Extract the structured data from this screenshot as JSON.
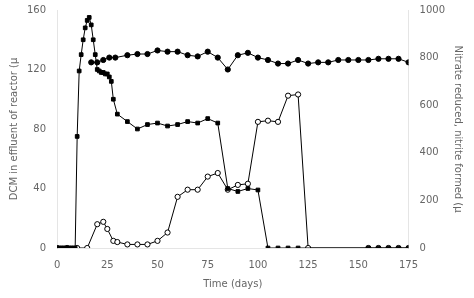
{
  "chart_data": {
    "type": "line",
    "xlabel": "Time (days)",
    "ylabel": "DCM in effluent of reactor (μ",
    "y2label": "Nitrate reduced, nitrite formed (μ",
    "xlim": [
      0,
      175
    ],
    "xticks": [
      0,
      25,
      50,
      75,
      100,
      125,
      150,
      175
    ],
    "ylim": [
      0,
      160
    ],
    "yticks": [
      0,
      40,
      80,
      120,
      160
    ],
    "y2lim": [
      0,
      1000
    ],
    "y2ticks": [
      0,
      200,
      400,
      600,
      800,
      1000
    ],
    "grid": false,
    "series": [
      {
        "axis": "y",
        "color": "#000000",
        "marker": "square",
        "x": [
          0,
          1,
          2,
          3,
          4,
          5,
          6,
          7,
          8,
          9,
          10,
          11,
          12,
          13,
          14,
          15,
          16,
          17,
          18,
          19,
          20,
          21,
          22,
          23,
          24,
          25,
          26,
          27,
          28,
          30,
          35,
          40,
          45,
          50,
          55,
          60,
          65,
          70,
          75,
          80,
          85,
          90,
          95,
          100,
          105,
          110,
          115,
          120,
          155,
          160,
          165,
          170,
          175
        ],
        "values": [
          0,
          0,
          0,
          0,
          0,
          0,
          0,
          0,
          0,
          0,
          75,
          119,
          130,
          140,
          148,
          153,
          155,
          150,
          140,
          130,
          120,
          119,
          118,
          118,
          117,
          117,
          115,
          112,
          100,
          90,
          85,
          80,
          83,
          84,
          82,
          83,
          85,
          84,
          87,
          84,
          40,
          38,
          40,
          39,
          0,
          0,
          0,
          0,
          0,
          0,
          0,
          0,
          0
        ]
      },
      {
        "axis": "y2",
        "color": "#000000",
        "marker": "circle",
        "x": [
          17,
          20,
          23,
          26,
          29,
          35,
          40,
          45,
          50,
          55,
          60,
          65,
          70,
          75,
          80,
          85,
          90,
          95,
          100,
          105,
          110,
          115,
          120,
          125,
          130,
          135,
          140,
          145,
          150,
          155,
          160,
          165,
          170,
          175
        ],
        "values": [
          780,
          780,
          790,
          800,
          800,
          810,
          815,
          815,
          830,
          825,
          825,
          810,
          805,
          825,
          800,
          750,
          810,
          820,
          800,
          790,
          775,
          775,
          790,
          775,
          780,
          780,
          790,
          790,
          790,
          790,
          795,
          795,
          795,
          780
        ]
      },
      {
        "axis": "y2",
        "color": "#000000",
        "marker": "circle_open",
        "x": [
          0,
          5,
          10,
          15,
          20,
          23,
          25,
          28,
          30,
          35,
          40,
          45,
          50,
          55,
          60,
          65,
          70,
          75,
          80,
          85,
          90,
          95,
          100,
          105,
          110,
          115,
          120,
          125,
          155,
          160,
          165,
          170,
          175
        ],
        "values": [
          0,
          0,
          0,
          0,
          100,
          110,
          80,
          30,
          25,
          15,
          15,
          15,
          30,
          65,
          215,
          245,
          245,
          300,
          315,
          245,
          265,
          270,
          530,
          535,
          530,
          640,
          645,
          0,
          0,
          0,
          0,
          0,
          0
        ]
      }
    ]
  }
}
